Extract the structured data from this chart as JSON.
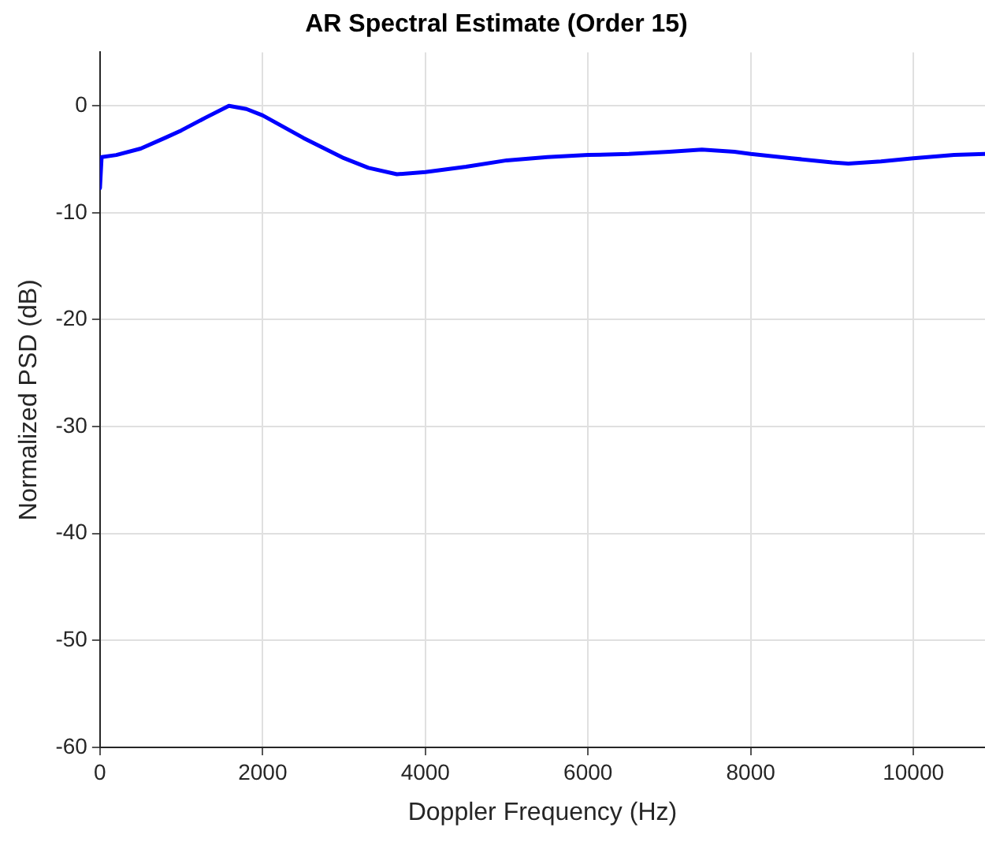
{
  "chart_data": {
    "type": "line",
    "title": "AR Spectral Estimate (Order 15)",
    "xlabel": "Doppler Frequency (Hz)",
    "ylabel": "Normalized PSD (dB)",
    "x": [
      0,
      20,
      200,
      500,
      800,
      1000,
      1300,
      1585,
      1800,
      2000,
      2500,
      3000,
      3300,
      3650,
      4000,
      4500,
      5000,
      5500,
      6000,
      6500,
      7000,
      7400,
      7800,
      8000,
      8500,
      9000,
      9200,
      9600,
      10000,
      10500,
      10880
    ],
    "series": [
      {
        "color": "#0000ff",
        "values": [
          -7.7,
          -4.8,
          -4.6,
          -4.0,
          -3.0,
          -2.3,
          -1.1,
          0,
          -0.3,
          -0.9,
          -3.0,
          -4.9,
          -5.8,
          -6.4,
          -6.2,
          -5.7,
          -5.1,
          -4.8,
          -4.6,
          -4.5,
          -4.3,
          -4.1,
          -4.3,
          -4.5,
          -4.9,
          -5.3,
          -5.4,
          -5.2,
          -4.9,
          -4.6,
          -4.5
        ]
      }
    ],
    "xlim": [
      0,
      10880
    ],
    "xticks": [
      0,
      2000,
      4000,
      6000,
      8000,
      10000
    ],
    "ylim": [
      -60,
      5
    ],
    "yticks": [
      -60,
      -50,
      -40,
      -30,
      -20,
      -10,
      0
    ],
    "grid": true,
    "legend": false,
    "marker": "none",
    "line_style": "solid"
  }
}
